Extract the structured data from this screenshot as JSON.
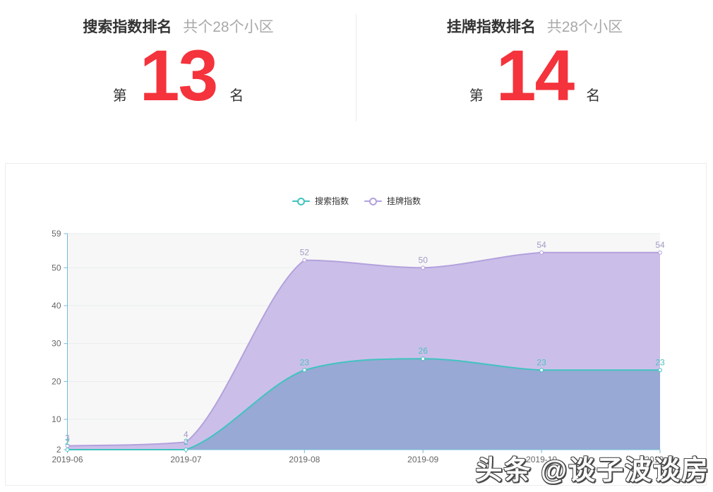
{
  "rank_section": {
    "rank_color": "#f4333c",
    "panels": [
      {
        "title": "搜索指数排名",
        "subtitle": "共个28个小区",
        "rank_prefix": "第",
        "rank": "13",
        "rank_suffix": "名"
      },
      {
        "title": "挂牌指数排名",
        "subtitle": "共28个小区",
        "rank_prefix": "第",
        "rank": "14",
        "rank_suffix": "名"
      }
    ]
  },
  "chart_card": {
    "legend": {
      "items": [
        {
          "label": "搜索指数",
          "color": "#41c3c0"
        },
        {
          "label": "挂牌指数",
          "color": "#b3a1dd"
        }
      ]
    }
  },
  "chart_data": {
    "type": "area",
    "title": "",
    "xlabel": "",
    "ylabel": "",
    "categories": [
      "2019-06",
      "2019-07",
      "2019-08",
      "2019-09",
      "2019-10",
      "2019-11"
    ],
    "series": [
      {
        "name": "挂牌指数",
        "values": [
          3,
          4,
          52,
          50,
          54,
          54
        ],
        "line_color": "#b3a1dd",
        "area_color": "#cbbfe9",
        "label_color": "#a29ac6"
      },
      {
        "name": "搜索指数",
        "values": [
          2,
          2,
          23,
          26,
          23,
          23
        ],
        "line_color": "#41c3c0",
        "area_color": "#97a9d4",
        "label_color": "#4fc0bd"
      }
    ],
    "ylim": [
      2,
      59
    ],
    "yticks": [
      2,
      10,
      20,
      30,
      40,
      50,
      59
    ],
    "grid": true,
    "legend_position": "top-center",
    "smooth": true,
    "axis_color": "#74b9d9",
    "grid_color": "#e9ebee",
    "plot_bg": "#f7f7f7",
    "tick_label_color": "#666666"
  },
  "watermark": {
    "text": "头条 @谈子波谈房"
  }
}
